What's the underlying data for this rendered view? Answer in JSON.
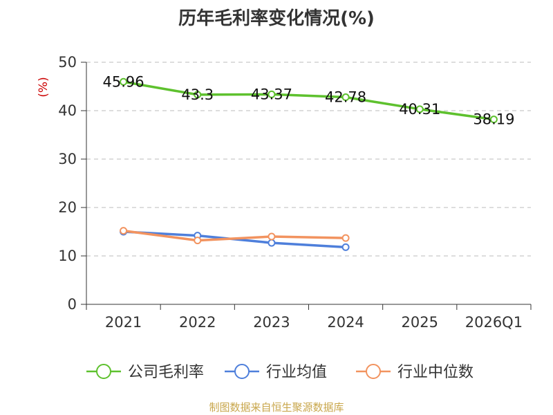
{
  "chart_data": {
    "type": "line",
    "title": "历年毛利率变化情况(%)",
    "ylabel": "(%)",
    "xlabel": "",
    "ylim": [
      0,
      50
    ],
    "yticks": [
      0,
      10,
      20,
      30,
      40,
      50
    ],
    "categories": [
      "2021",
      "2022",
      "2023",
      "2024",
      "2025",
      "2026Q1"
    ],
    "grid": true,
    "legend_position": "bottom",
    "series": [
      {
        "name": "公司毛利率",
        "color": "#5ec12e",
        "show_labels": true,
        "values": [
          45.96,
          43.3,
          43.37,
          42.78,
          40.31,
          38.19
        ],
        "labels": [
          "45.96",
          "43.3",
          "43.37",
          "42.78",
          "40.31",
          "38.19"
        ]
      },
      {
        "name": "行业均值",
        "color": "#4e7fdb",
        "show_labels": false,
        "values": [
          15.0,
          14.2,
          12.7,
          11.8,
          null,
          null
        ]
      },
      {
        "name": "行业中位数",
        "color": "#f2935f",
        "show_labels": false,
        "values": [
          15.2,
          13.2,
          14.0,
          13.7,
          null,
          null
        ]
      }
    ]
  },
  "footer": {
    "text": "制图数据来自恒生聚源数据库",
    "color": "#c8a64b"
  },
  "colors": {
    "ylabel": "#cc0000",
    "grid": "#bbbbbb",
    "axis": "#333333"
  }
}
